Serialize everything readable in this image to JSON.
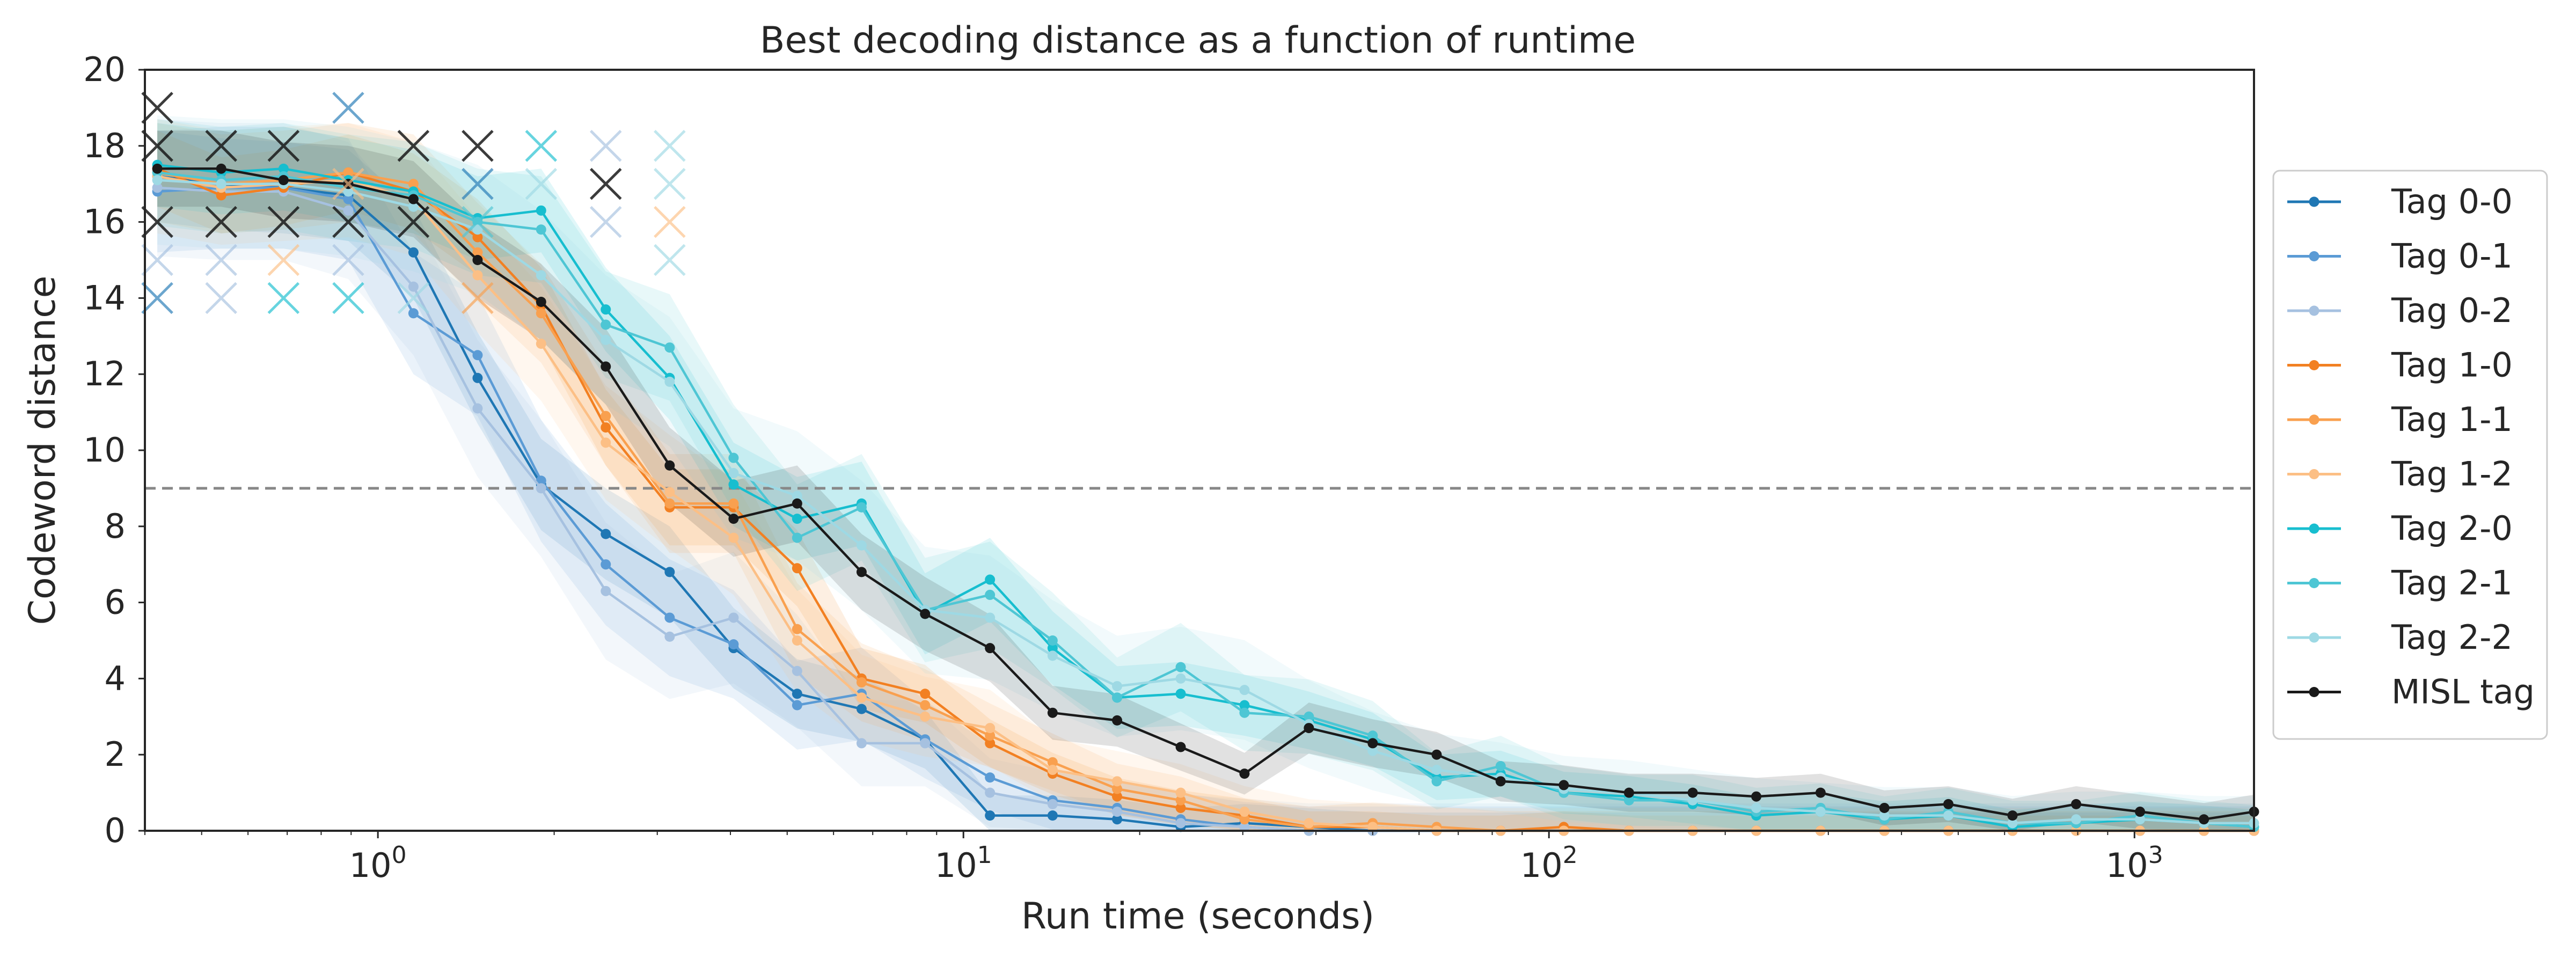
{
  "chart_data": {
    "type": "line",
    "title": "Best decoding distance as a function of runtime",
    "xlabel": "Run time (seconds)",
    "ylabel": "Codeword distance",
    "xscale": "log",
    "xlim": [
      0.4,
      1600
    ],
    "ylim": [
      0,
      20
    ],
    "yticks": [
      0,
      2,
      4,
      6,
      8,
      10,
      12,
      14,
      16,
      18,
      20
    ],
    "xticks": [
      {
        "value": 1,
        "label": "10",
        "exp": "0"
      },
      {
        "value": 10,
        "label": "10",
        "exp": "1"
      },
      {
        "value": 100,
        "label": "10",
        "exp": "2"
      },
      {
        "value": 1000,
        "label": "10",
        "exp": "3"
      }
    ],
    "threshold": {
      "value": 9,
      "style": "dashed",
      "color": "#888888"
    },
    "grid": false,
    "legend_position": "outside-right",
    "x": [
      0.42,
      0.54,
      0.69,
      0.89,
      1.15,
      1.48,
      1.9,
      2.45,
      3.15,
      4.05,
      5.2,
      6.7,
      8.6,
      11.1,
      14.2,
      18.3,
      23.5,
      30.2,
      38.9,
      50,
      64.3,
      82.7,
      106,
      137,
      176,
      226,
      291,
      374,
      481,
      619,
      795,
      1022,
      1314,
      1600
    ],
    "series": [
      {
        "name": "Tag 0-0",
        "color": "#1f77b4",
        "values": [
          17.2,
          17.0,
          16.9,
          16.7,
          15.2,
          11.9,
          9.1,
          7.8,
          6.8,
          4.8,
          3.6,
          3.2,
          2.4,
          0.4,
          0.4,
          0.3,
          0.1,
          0.2,
          0.1,
          0.0,
          0.0,
          0.0,
          0.0,
          0.0,
          0.0,
          0.0,
          0.0,
          0.0,
          0.0,
          0.0,
          0.0,
          0.0,
          0.0,
          0.0
        ],
        "band": 1.2
      },
      {
        "name": "Tag 0-1",
        "color": "#5b9bd5",
        "values": [
          16.8,
          16.9,
          16.9,
          16.6,
          13.6,
          12.5,
          9.2,
          7.0,
          5.6,
          4.9,
          3.3,
          3.6,
          2.4,
          1.4,
          0.8,
          0.6,
          0.3,
          0.1,
          0.0,
          0.0,
          0.0,
          0.0,
          0.0,
          0.0,
          0.0,
          0.0,
          0.0,
          0.0,
          0.0,
          0.0,
          0.0,
          0.0,
          0.0,
          0.0
        ],
        "band": 1.6
      },
      {
        "name": "Tag 0-2",
        "color": "#a6c1e0",
        "values": [
          16.9,
          16.8,
          16.8,
          16.3,
          14.3,
          11.1,
          9.0,
          6.3,
          5.1,
          5.6,
          4.2,
          2.3,
          2.3,
          1.0,
          0.7,
          0.5,
          0.2,
          0.1,
          0.0,
          0.0,
          0.0,
          0.0,
          0.0,
          0.0,
          0.0,
          0.0,
          0.0,
          0.0,
          0.0,
          0.0,
          0.0,
          0.0,
          0.0,
          0.0
        ],
        "band": 1.8
      },
      {
        "name": "Tag 1-0",
        "color": "#f28022",
        "values": [
          17.4,
          16.7,
          16.9,
          17.3,
          16.8,
          15.6,
          13.8,
          10.6,
          8.5,
          8.5,
          6.9,
          4.0,
          3.6,
          2.3,
          1.5,
          0.9,
          0.6,
          0.4,
          0.1,
          0.1,
          0.0,
          0.0,
          0.1,
          0.0,
          0.0,
          0.0,
          0.0,
          0.0,
          0.0,
          0.0,
          0.0,
          0.0,
          0.0,
          0.0
        ],
        "band": 1.0
      },
      {
        "name": "Tag 1-1",
        "color": "#f9a04f",
        "values": [
          17.3,
          17.0,
          17.1,
          17.3,
          17.0,
          15.2,
          13.6,
          10.9,
          8.6,
          8.6,
          5.3,
          3.9,
          3.3,
          2.5,
          1.8,
          1.1,
          0.8,
          0.3,
          0.1,
          0.2,
          0.1,
          0.0,
          0.0,
          0.0,
          0.0,
          0.0,
          0.0,
          0.0,
          0.0,
          0.0,
          0.0,
          0.0,
          0.0,
          0.0
        ],
        "band": 1.3
      },
      {
        "name": "Tag 1-2",
        "color": "#fcbf85",
        "values": [
          17.2,
          16.9,
          17.0,
          17.1,
          16.6,
          14.6,
          12.8,
          10.2,
          8.9,
          7.7,
          5.0,
          3.5,
          3.0,
          2.7,
          1.6,
          1.3,
          1.0,
          0.5,
          0.2,
          0.1,
          0.0,
          0.0,
          0.0,
          0.0,
          0.0,
          0.0,
          0.0,
          0.0,
          0.0,
          0.0,
          0.0,
          0.0,
          0.0,
          0.0
        ],
        "band": 1.5
      },
      {
        "name": "Tag 2-0",
        "color": "#17becf",
        "values": [
          17.5,
          17.3,
          17.4,
          17.1,
          16.8,
          16.1,
          16.3,
          13.7,
          11.9,
          9.1,
          8.2,
          8.6,
          5.7,
          6.6,
          4.8,
          3.5,
          3.6,
          3.3,
          2.9,
          2.4,
          1.4,
          1.5,
          1.0,
          0.9,
          0.7,
          0.4,
          0.5,
          0.3,
          0.4,
          0.1,
          0.2,
          0.3,
          0.2,
          0.1
        ],
        "band": 1.1
      },
      {
        "name": "Tag 2-1",
        "color": "#4ec6d4",
        "values": [
          17.3,
          17.1,
          17.2,
          16.9,
          16.7,
          16.0,
          15.8,
          13.3,
          12.7,
          9.8,
          7.7,
          8.5,
          5.8,
          6.2,
          5.0,
          3.5,
          4.3,
          3.1,
          3.0,
          2.5,
          1.3,
          1.7,
          1.0,
          0.8,
          0.8,
          0.5,
          0.6,
          0.3,
          0.5,
          0.2,
          0.2,
          0.4,
          0.2,
          0.1
        ],
        "band": 1.4
      },
      {
        "name": "Tag 2-2",
        "color": "#9ed9e4",
        "values": [
          17.1,
          17.0,
          17.0,
          16.8,
          16.4,
          15.8,
          14.6,
          12.9,
          11.8,
          9.4,
          8.8,
          7.5,
          5.8,
          5.6,
          4.6,
          3.8,
          4.0,
          3.7,
          2.8,
          2.1,
          1.6,
          1.4,
          1.1,
          1.0,
          0.8,
          0.6,
          0.5,
          0.4,
          0.4,
          0.2,
          0.3,
          0.3,
          0.2,
          0.2
        ],
        "band": 1.7
      },
      {
        "name": "MISL tag",
        "color": "#1a1a1a",
        "values": [
          17.4,
          17.4,
          17.1,
          17.0,
          16.6,
          15.0,
          13.9,
          12.2,
          9.6,
          8.2,
          8.6,
          6.8,
          5.7,
          4.8,
          3.1,
          2.9,
          2.2,
          1.5,
          2.7,
          2.3,
          2.0,
          1.3,
          1.2,
          1.0,
          1.0,
          0.9,
          1.0,
          0.6,
          0.7,
          0.4,
          0.7,
          0.5,
          0.3,
          0.5
        ],
        "band": 1.0
      }
    ],
    "failed_runs": [
      {
        "series": "MISL tag",
        "x": 0.42,
        "y": [
          19.0,
          18.0,
          16.0
        ]
      },
      {
        "series": "MISL tag",
        "x": 0.54,
        "y": [
          18.0,
          16.0
        ]
      },
      {
        "series": "MISL tag",
        "x": 0.69,
        "y": [
          18.0,
          16.0
        ]
      },
      {
        "series": "MISL tag",
        "x": 0.89,
        "y": [
          16.0
        ]
      },
      {
        "series": "MISL tag",
        "x": 1.15,
        "y": [
          18.0,
          16.0
        ]
      },
      {
        "series": "MISL tag",
        "x": 1.48,
        "y": [
          18.0
        ]
      },
      {
        "series": "MISL tag",
        "x": 2.45,
        "y": [
          17.0
        ]
      },
      {
        "series": "Tag 0-0",
        "x": 0.42,
        "y": [
          14.0
        ]
      },
      {
        "series": "Tag 0-0",
        "x": 0.89,
        "y": [
          19.0
        ]
      },
      {
        "series": "Tag 0-0",
        "x": 1.48,
        "y": [
          17.0
        ]
      },
      {
        "series": "Tag 0-2",
        "x": 0.42,
        "y": [
          15.0
        ]
      },
      {
        "series": "Tag 0-2",
        "x": 0.54,
        "y": [
          15.0,
          14.0
        ]
      },
      {
        "series": "Tag 0-2",
        "x": 0.89,
        "y": [
          15.0
        ]
      },
      {
        "series": "Tag 0-2",
        "x": 2.45,
        "y": [
          18.0,
          16.0
        ]
      },
      {
        "series": "Tag 1-2",
        "x": 0.69,
        "y": [
          15.0
        ]
      },
      {
        "series": "Tag 1-2",
        "x": 0.89,
        "y": [
          17.0
        ]
      },
      {
        "series": "Tag 1-2",
        "x": 3.15,
        "y": [
          16.0
        ]
      },
      {
        "series": "Tag 1-1",
        "x": 1.48,
        "y": [
          14.0
        ]
      },
      {
        "series": "Tag 2-0",
        "x": 0.69,
        "y": [
          14.0
        ]
      },
      {
        "series": "Tag 2-0",
        "x": 0.89,
        "y": [
          14.0
        ]
      },
      {
        "series": "Tag 2-0",
        "x": 1.9,
        "y": [
          18.0
        ]
      },
      {
        "series": "Tag 2-1",
        "x": 1.48,
        "y": [
          16.0
        ]
      },
      {
        "series": "Tag 2-2",
        "x": 1.9,
        "y": [
          17.0
        ]
      },
      {
        "series": "Tag 2-2",
        "x": 3.15,
        "y": [
          18.0,
          17.0,
          15.0
        ]
      },
      {
        "series": "Tag 2-2",
        "x": 1.15,
        "y": [
          14.0
        ]
      }
    ]
  }
}
